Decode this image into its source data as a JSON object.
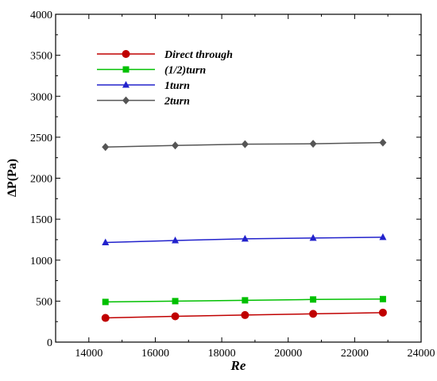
{
  "chart_data": {
    "type": "line",
    "xlabel": "Re",
    "ylabel": "ΔP(Pa)",
    "xlim": [
      13000,
      24000
    ],
    "ylim": [
      0,
      4000
    ],
    "x_ticks": [
      14000,
      16000,
      18000,
      20000,
      22000,
      24000
    ],
    "y_ticks": [
      0,
      500,
      1000,
      1500,
      2000,
      2500,
      3000,
      3500,
      4000
    ],
    "grid": false,
    "legend_position": "top-left",
    "x": [
      14500,
      16600,
      18700,
      20750,
      22850
    ],
    "series": [
      {
        "name": "Direct through",
        "color": "#c00000",
        "marker": "circle",
        "values": [
          295,
          315,
          330,
          345,
          360
        ]
      },
      {
        "name": "(1/2)turn",
        "color": "#00c000",
        "marker": "square",
        "values": [
          490,
          500,
          510,
          520,
          525
        ]
      },
      {
        "name": "1turn",
        "color": "#2222cc",
        "marker": "triangle",
        "values": [
          1215,
          1240,
          1260,
          1270,
          1280
        ]
      },
      {
        "name": "2turn",
        "color": "#555555",
        "marker": "diamond",
        "values": [
          2380,
          2400,
          2415,
          2420,
          2435
        ]
      }
    ]
  }
}
